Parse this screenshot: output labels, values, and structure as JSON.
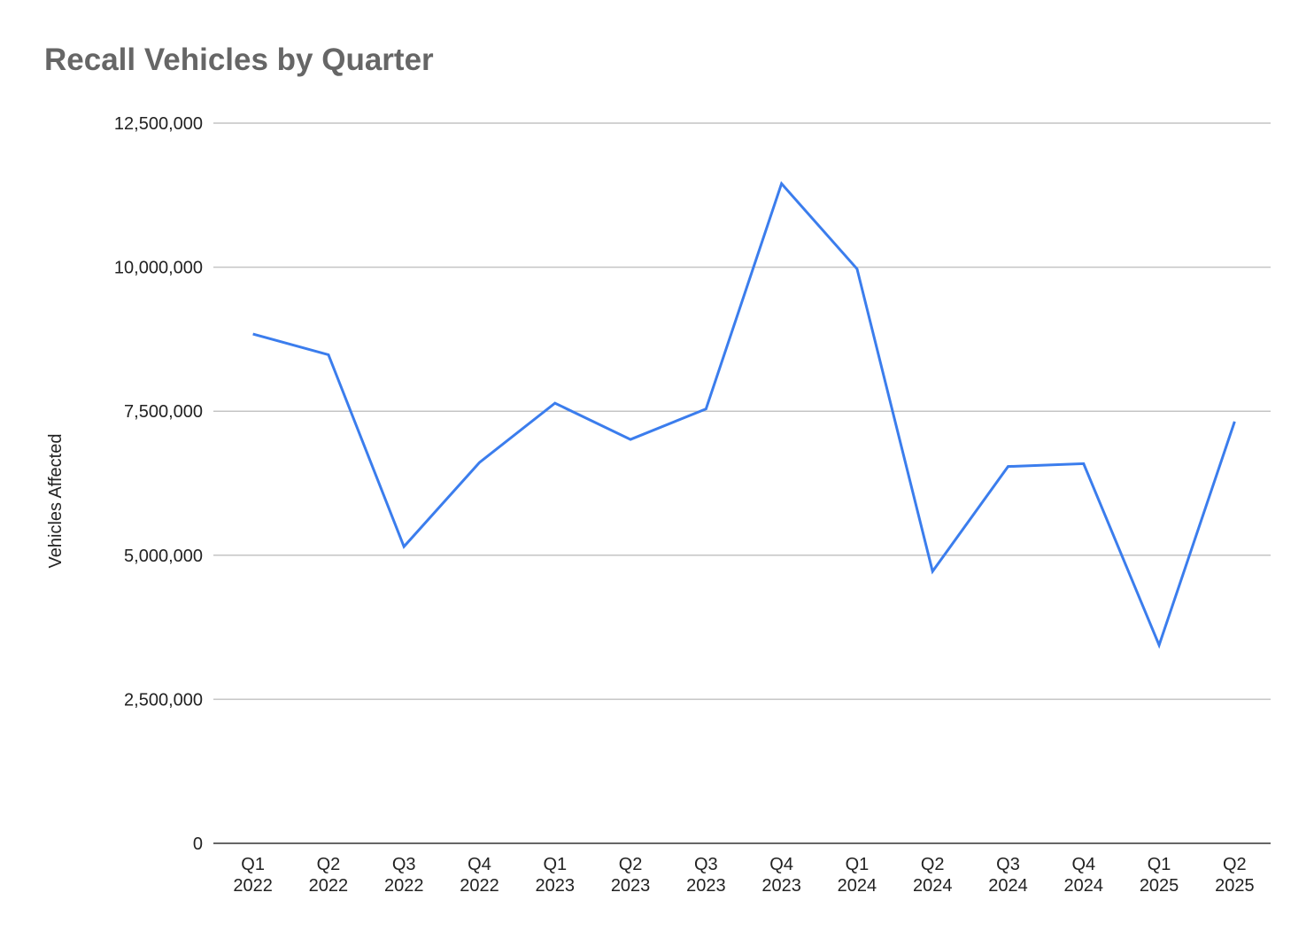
{
  "chart_data": {
    "type": "line",
    "title": "Recall Vehicles by Quarter",
    "xlabel": "",
    "ylabel": "Vehicles Affected",
    "categories": [
      "Q1 2022",
      "Q2 2022",
      "Q3 2022",
      "Q4 2022",
      "Q1 2023",
      "Q2 2023",
      "Q3 2023",
      "Q4 2023",
      "Q1 2024",
      "Q2 2024",
      "Q3 2024",
      "Q4 2024",
      "Q1 2025",
      "Q2 2025"
    ],
    "series": [
      {
        "values": [
          8840000,
          8480000,
          5150000,
          6610000,
          7640000,
          7010000,
          7540000,
          11450000,
          9970000,
          4720000,
          6540000,
          6590000,
          3440000,
          7320000
        ],
        "color": "#3b7ded"
      }
    ],
    "ylim": [
      0,
      12500000
    ],
    "yticks": [
      0,
      2500000,
      5000000,
      7500000,
      10000000,
      12500000
    ],
    "ytick_labels": [
      "0",
      "2,500,000",
      "5,000,000",
      "7,500,000",
      "10,000,000",
      "12,500,000"
    ],
    "grid": true,
    "legend": "none"
  }
}
